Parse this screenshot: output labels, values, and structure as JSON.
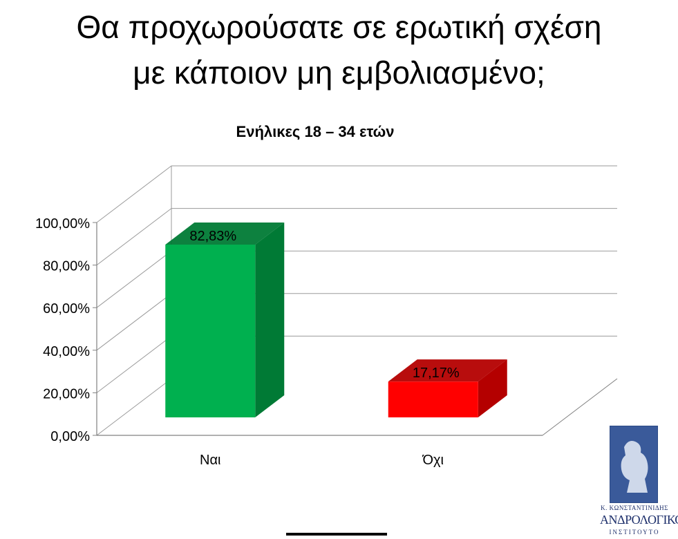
{
  "slide": {
    "title_line1": "Θα προχωρούσατε σε ερωτική σχέση",
    "title_line2": "με κάποιον μη εμβολιασμένο;"
  },
  "chart_data": {
    "type": "bar",
    "title": "Ενήλικες 18 – 34 ετών",
    "categories": [
      "Ναι",
      "Όχι"
    ],
    "values": [
      82.83,
      17.17
    ],
    "data_labels": [
      "82,83%",
      "17,17%"
    ],
    "bar_colors": [
      "#00b04f",
      "#ff0000"
    ],
    "bar_side_colors": [
      "#007a35",
      "#b40000"
    ],
    "ylim": [
      0,
      100
    ],
    "yticks": [
      "0,00%",
      "20,00%",
      "40,00%",
      "60,00%",
      "80,00%",
      "100,00%"
    ],
    "grid": true,
    "view": "3d"
  },
  "logo": {
    "line1": "Κ. ΚΩΝΣΤΑΝΤΙΝΙΔΗΣ",
    "line2": "ΑΝΔΡΟΛΟΓΙΚΟ",
    "line3": "ΙΝΣΤΙΤΟΥΤΟ"
  }
}
